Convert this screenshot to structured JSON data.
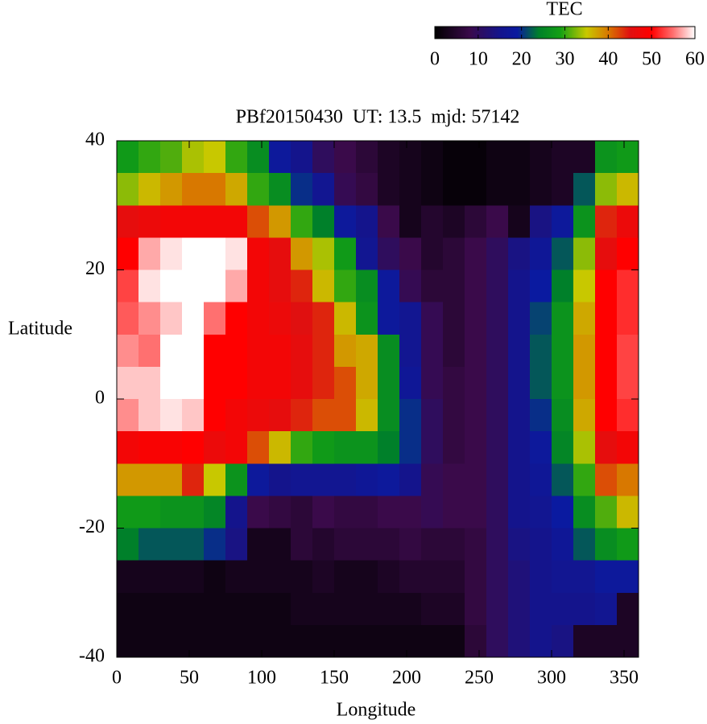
{
  "chart_data": {
    "type": "heatmap",
    "title": "PBf20150430  UT: 13.5  mjd: 57142",
    "x_label": "Longitude",
    "y_label": "Latitude",
    "colorbar_label": "TEC",
    "xlim": [
      0,
      360
    ],
    "ylim": [
      -40,
      40
    ],
    "xticks": [
      0,
      50,
      100,
      150,
      200,
      250,
      300,
      350
    ],
    "yticks": [
      40,
      20,
      0,
      -20,
      -40
    ],
    "cblim": [
      0,
      60
    ],
    "cbticks": [
      0,
      10,
      20,
      30,
      40,
      50,
      60
    ],
    "colormap": [
      {
        "value": 0,
        "color": "#000000"
      },
      {
        "value": 8,
        "color": "#3a0a4a"
      },
      {
        "value": 15,
        "color": "#14148c"
      },
      {
        "value": 19,
        "color": "#0a1aa0"
      },
      {
        "value": 24,
        "color": "#00802a"
      },
      {
        "value": 29,
        "color": "#14a014"
      },
      {
        "value": 35,
        "color": "#c8c800"
      },
      {
        "value": 40,
        "color": "#d87800"
      },
      {
        "value": 45,
        "color": "#e01010"
      },
      {
        "value": 50,
        "color": "#ff0000"
      },
      {
        "value": 55,
        "color": "#ff7070"
      },
      {
        "value": 60,
        "color": "#ffffff"
      }
    ],
    "x_bins": [
      0,
      15,
      30,
      45,
      60,
      75,
      90,
      105,
      120,
      135,
      150,
      165,
      180,
      195,
      210,
      225,
      240,
      255,
      270,
      285,
      300,
      315,
      330,
      345,
      360
    ],
    "y_bins": [
      40,
      35,
      30,
      25,
      20,
      15,
      10,
      5,
      0,
      -5,
      -10,
      -15,
      -20,
      -25,
      -30,
      -35,
      -40
    ],
    "z": [
      [
        28,
        30,
        31,
        34,
        35,
        30,
        26,
        18,
        15,
        10,
        8,
        6,
        4,
        3,
        2,
        1,
        1,
        2,
        2,
        3,
        4,
        4,
        27,
        28
      ],
      [
        33,
        36,
        38,
        40,
        40,
        37,
        30,
        26,
        20,
        16,
        9,
        7,
        4,
        3,
        2,
        1,
        1,
        2,
        2,
        3,
        4,
        22,
        33,
        36
      ],
      [
        46,
        47,
        48,
        48,
        48,
        48,
        42,
        38,
        30,
        24,
        18,
        15,
        8,
        3,
        5,
        4,
        6,
        8,
        3,
        14,
        18,
        27,
        44,
        47
      ],
      [
        50,
        57,
        59,
        60,
        60,
        59,
        48,
        46,
        38,
        34,
        28,
        16,
        10,
        8,
        5,
        6,
        8,
        10,
        14,
        17,
        22,
        33,
        46,
        50
      ],
      [
        53,
        59,
        60,
        60,
        60,
        57,
        48,
        46,
        44,
        36,
        30,
        26,
        18,
        9,
        6,
        6,
        8,
        10,
        15,
        19,
        24,
        35,
        50,
        52
      ],
      [
        54,
        56,
        58,
        60,
        55,
        50,
        48,
        47,
        45,
        44,
        36,
        27,
        18,
        16,
        9,
        6,
        8,
        10,
        15,
        21,
        27,
        37,
        50,
        52
      ],
      [
        56,
        55,
        60,
        60,
        50,
        50,
        48,
        48,
        46,
        44,
        38,
        37,
        26,
        16,
        9,
        6,
        8,
        10,
        15,
        22,
        27,
        38,
        50,
        53
      ],
      [
        58,
        58,
        60,
        60,
        50,
        50,
        48,
        48,
        46,
        44,
        42,
        37,
        26,
        17,
        9,
        7,
        8,
        10,
        15,
        22,
        27,
        38,
        50,
        53
      ],
      [
        56,
        58,
        59,
        58,
        50,
        48,
        47,
        46,
        44,
        42,
        42,
        36,
        26,
        20,
        10,
        7,
        8,
        10,
        15,
        20,
        26,
        37,
        50,
        52
      ],
      [
        48,
        49,
        49,
        50,
        47,
        48,
        42,
        36,
        30,
        28,
        27,
        27,
        24,
        20,
        10,
        7,
        8,
        10,
        15,
        18,
        25,
        34,
        46,
        48
      ],
      [
        38,
        38,
        38,
        44,
        35,
        27,
        18,
        15,
        16,
        16,
        16,
        17,
        18,
        15,
        9,
        8,
        8,
        10,
        15,
        17,
        22,
        30,
        42,
        40
      ],
      [
        28,
        28,
        27,
        27,
        25,
        15,
        8,
        7,
        6,
        8,
        7,
        7,
        8,
        8,
        9,
        8,
        8,
        10,
        15,
        16,
        19,
        26,
        31,
        36
      ],
      [
        24,
        22,
        22,
        22,
        20,
        14,
        3,
        3,
        6,
        5,
        6,
        6,
        6,
        7,
        6,
        6,
        7,
        10,
        14,
        15,
        17,
        22,
        26,
        28
      ],
      [
        3,
        3,
        3,
        3,
        2,
        3,
        3,
        3,
        3,
        4,
        3,
        3,
        4,
        5,
        5,
        5,
        7,
        10,
        13,
        15,
        16,
        16,
        18,
        18
      ],
      [
        2,
        2,
        2,
        2,
        2,
        2,
        2,
        2,
        3,
        3,
        3,
        3,
        3,
        3,
        4,
        4,
        7,
        10,
        13,
        15,
        15,
        15,
        16,
        4
      ],
      [
        2,
        2,
        2,
        2,
        2,
        2,
        2,
        2,
        2,
        2,
        2,
        2,
        2,
        2,
        2,
        2,
        6,
        10,
        13,
        15,
        14,
        4,
        4,
        4
      ]
    ]
  }
}
